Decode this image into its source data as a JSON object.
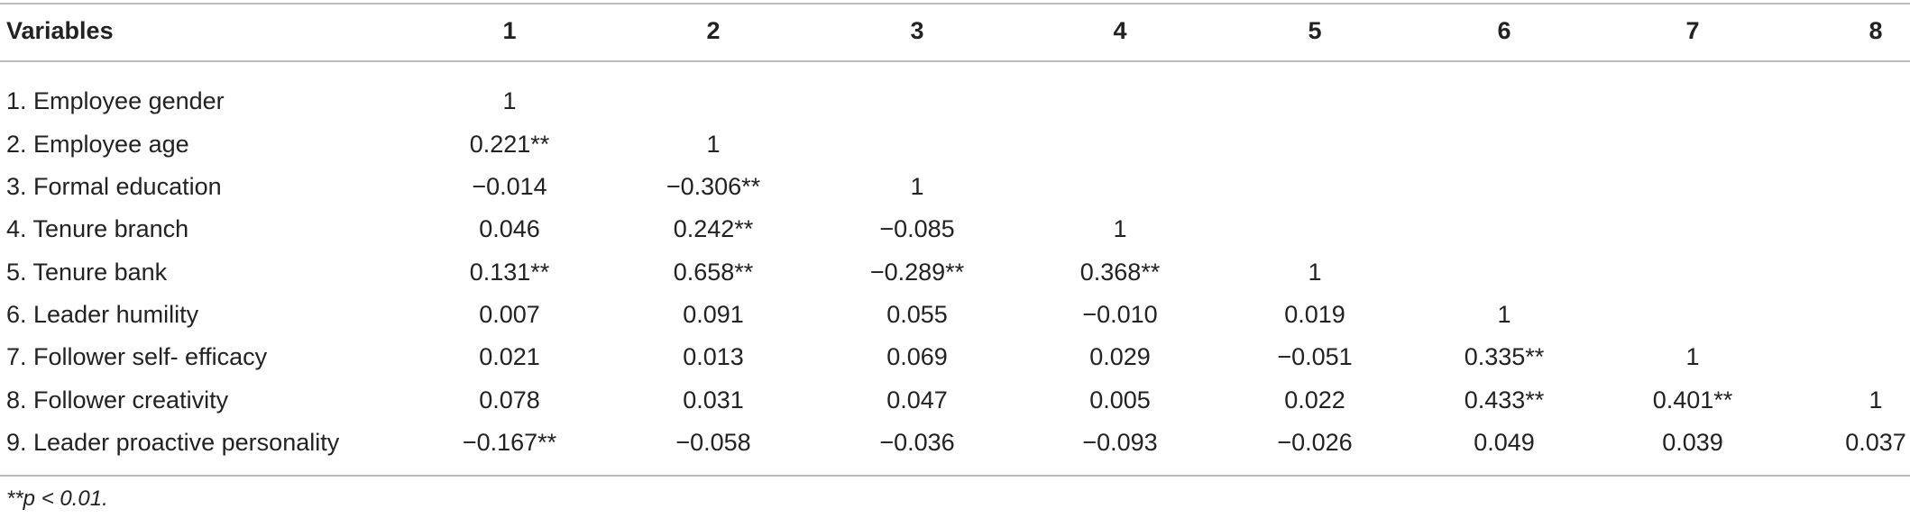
{
  "table": {
    "header": [
      "Variables",
      "1",
      "2",
      "3",
      "4",
      "5",
      "6",
      "7",
      "8"
    ],
    "rows": [
      [
        "1. Employee gender",
        "1"
      ],
      [
        "2. Employee age",
        "0.221**",
        "1"
      ],
      [
        "3. Formal education",
        "−0.014",
        "−0.306**",
        "1"
      ],
      [
        "4. Tenure branch",
        "0.046",
        "0.242**",
        "−0.085",
        "1"
      ],
      [
        "5. Tenure bank",
        "0.131**",
        "0.658**",
        "−0.289**",
        "0.368**",
        "1"
      ],
      [
        "6. Leader humility",
        "0.007",
        "0.091",
        "0.055",
        "−0.010",
        "0.019",
        "1"
      ],
      [
        "7. Follower self- efficacy",
        "0.021",
        "0.013",
        "0.069",
        "0.029",
        "−0.051",
        "0.335**",
        "1"
      ],
      [
        "8. Follower creativity",
        "0.078",
        "0.031",
        "0.047",
        "0.005",
        "0.022",
        "0.433**",
        "0.401**",
        "1"
      ],
      [
        "9. Leader proactive personality",
        "−0.167**",
        "−0.058",
        "−0.036",
        "−0.093",
        "−0.026",
        "0.049",
        "0.039",
        "0.037"
      ]
    ],
    "footnote": "**p < 0.01."
  }
}
